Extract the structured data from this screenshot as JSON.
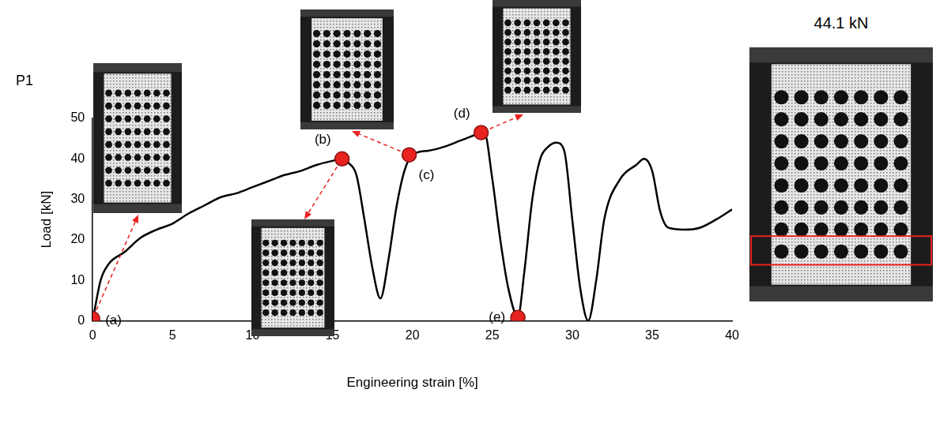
{
  "chart_data": {
    "type": "line",
    "title": "P1",
    "image_caption": "44.1 kN",
    "x_label": "Engineering strain [%]",
    "y_label": "Load [kN]",
    "x": [
      0,
      0.5,
      1,
      2,
      3,
      4,
      5,
      6,
      7,
      8,
      9,
      10,
      11,
      12,
      13,
      14,
      15,
      15.6,
      16,
      16.5,
      17,
      17.5,
      18,
      18.5,
      19,
      19.5,
      20,
      21,
      22,
      23,
      24,
      24.5,
      25,
      25.5,
      26,
      26.6,
      27,
      27.5,
      28,
      28.5,
      29,
      29.5,
      30,
      30.5,
      31,
      31.5,
      32,
      33,
      34,
      34.5,
      35,
      35.5,
      36,
      37,
      38,
      39,
      40
    ],
    "series": [
      {
        "color": "#000000",
        "values": [
          0,
          10,
          14,
          17,
          20.5,
          22.5,
          24,
          26.5,
          28.5,
          30.5,
          31.5,
          33,
          34.5,
          36,
          37,
          38.5,
          39.5,
          40,
          39,
          36,
          25,
          13,
          5.5,
          15,
          28,
          37,
          41,
          42,
          43,
          44.5,
          46,
          46.5,
          35,
          20,
          8,
          1,
          12,
          30,
          40,
          43,
          44,
          42,
          25,
          8,
          0,
          10,
          25,
          35,
          38.5,
          40,
          37,
          27,
          23,
          22.5,
          23,
          25,
          27.5
        ]
      }
    ],
    "annotations": [
      {
        "text": "(a)",
        "x": 0,
        "y": 0.5,
        "color": "#e8231f"
      },
      {
        "text": "(b)",
        "x": 15.6,
        "y": 40,
        "color": "#e8231f"
      },
      {
        "text": "(c)",
        "x": 19.8,
        "y": 41,
        "color": "#e8231f"
      },
      {
        "text": "(d)",
        "x": 24.3,
        "y": 46.5,
        "color": "#e8231f"
      },
      {
        "text": "(e)",
        "x": 26.6,
        "y": 0.8,
        "color": "#e8231f"
      }
    ],
    "xlim": [
      0,
      40
    ],
    "xticks": [
      0,
      5,
      10,
      15,
      20,
      25,
      30,
      35,
      40
    ],
    "ylim": [
      0,
      50
    ],
    "yticks": [
      0,
      10,
      20,
      30,
      40,
      50
    ],
    "grid": false
  }
}
